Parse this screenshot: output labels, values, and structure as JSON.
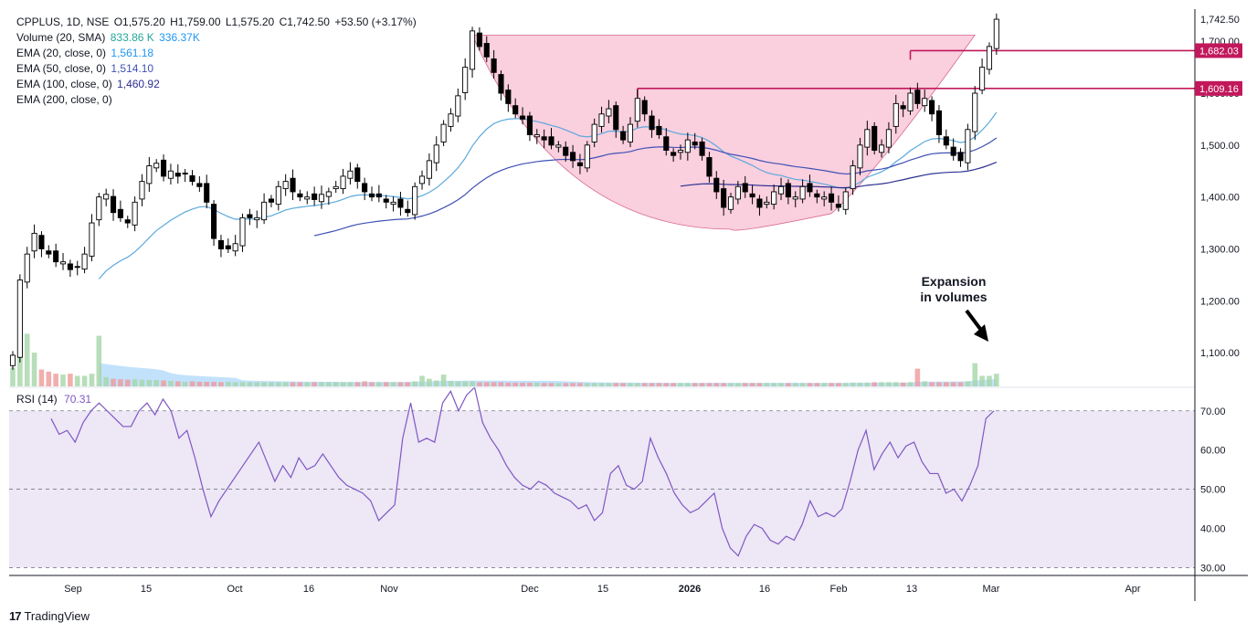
{
  "legend": {
    "symbol": "CPPLUS, 1D, NSE",
    "open": "O1,575.20",
    "high": "H1,759.00",
    "low": "L1,575.20",
    "close": "C1,742.50",
    "change": "+53.50 (+3.17%)",
    "volume_label": "Volume (20, SMA)",
    "volume_value": "833.86 K",
    "volume_sma": "336.37K",
    "ema20_label": "EMA (20, close, 0)",
    "ema20_value": "1,561.18",
    "ema50_label": "EMA (50, close, 0)",
    "ema50_value": "1,514.10",
    "ema100_label": "EMA (100, close, 0)",
    "ema100_value": "1,460.92",
    "ema200_label": "EMA (200, close, 0)"
  },
  "rsi_legend": {
    "label": "RSI (14)",
    "value": "70.31"
  },
  "annotation": {
    "line1": "Expansion",
    "line2": "in volumes"
  },
  "brand": {
    "logo": "17",
    "name": "TradingView"
  },
  "colors": {
    "up": "#ffffff",
    "down": "#000000",
    "ema20": "#5aa9dd",
    "ema50": "#3f51b5",
    "ema100": "#2b2f8f",
    "cup_fill": "#f8bbd0",
    "level_line": "#c2185b",
    "rsi_line": "#7e57c2",
    "rsi_bg": "#ede7f6",
    "vol_up": "#a5d6a7",
    "vol_down": "#ef9a9a",
    "vol_sma": "#90caf9"
  },
  "chart_data": [
    {
      "type": "candlestick",
      "title": "CPPLUS, 1D, NSE",
      "y_ticks": [
        "1,100.00",
        "1,200.00",
        "1,300.00",
        "1,400.00",
        "1,500.00",
        "1,600.00",
        "1,700.00"
      ],
      "y_tick_values": [
        1100,
        1200,
        1300,
        1400,
        1500,
        1600,
        1700
      ],
      "ylim": [
        1035,
        1762
      ],
      "x_ticks": [
        "Sep",
        "15",
        "Oct",
        "16",
        "Nov",
        "Dec",
        "15",
        "2026",
        "16",
        "Feb",
        "13",
        "Mar",
        "Apr"
      ],
      "x_tick_bold": [
        "2026"
      ],
      "price_labels": [
        {
          "text": "1,742.50",
          "value": 1742.5,
          "tag": false
        },
        {
          "text": "1,682.03",
          "value": 1682.03,
          "tag": true
        },
        {
          "text": "1,609.16",
          "value": 1609.16,
          "tag": true
        }
      ],
      "levels": [
        {
          "value": 1682.03,
          "from_index": 125
        },
        {
          "value": 1609.16,
          "from_index": 87
        }
      ],
      "cup": {
        "left_index": 64,
        "right_index": 134,
        "rim": 1712,
        "bottom": 1338
      },
      "closes": [
        1095,
        1240,
        1290,
        1330,
        1300,
        1290,
        1275,
        1275,
        1260,
        1265,
        1290,
        1350,
        1400,
        1405,
        1370,
        1360,
        1350,
        1390,
        1430,
        1460,
        1465,
        1440,
        1450,
        1440,
        1445,
        1430,
        1420,
        1390,
        1320,
        1300,
        1300,
        1310,
        1360,
        1360,
        1360,
        1390,
        1390,
        1420,
        1430,
        1410,
        1400,
        1400,
        1395,
        1405,
        1410,
        1420,
        1440,
        1450,
        1430,
        1410,
        1400,
        1400,
        1390,
        1390,
        1380,
        1370,
        1420,
        1440,
        1470,
        1500,
        1540,
        1560,
        1595,
        1650,
        1720,
        1690,
        1670,
        1640,
        1600,
        1580,
        1560,
        1550,
        1520,
        1520,
        1510,
        1500,
        1500,
        1480,
        1470,
        1460,
        1500,
        1540,
        1560,
        1570,
        1530,
        1510,
        1540,
        1590,
        1560,
        1530,
        1520,
        1490,
        1480,
        1490,
        1510,
        1500,
        1480,
        1440,
        1410,
        1380,
        1400,
        1420,
        1410,
        1400,
        1380,
        1390,
        1410,
        1420,
        1400,
        1400,
        1420,
        1410,
        1400,
        1400,
        1390,
        1380,
        1410,
        1460,
        1500,
        1530,
        1490,
        1500,
        1530,
        1580,
        1570,
        1600,
        1580,
        1590,
        1560,
        1520,
        1500,
        1480,
        1470,
        1530,
        1600,
        1650,
        1690,
        1742.5
      ],
      "volumes": [
        45,
        70,
        125,
        80,
        40,
        35,
        30,
        28,
        30,
        25,
        25,
        30,
        120,
        22,
        18,
        17,
        16,
        17,
        16,
        15,
        15,
        14,
        13,
        12,
        11,
        12,
        11,
        11,
        11,
        10,
        11,
        10,
        10,
        10,
        10,
        10,
        10,
        10,
        10,
        10,
        10,
        10,
        10,
        10,
        10,
        10,
        10,
        10,
        10,
        12,
        10,
        10,
        10,
        10,
        10,
        10,
        12,
        25,
        18,
        14,
        28,
        13,
        12,
        12,
        12,
        10,
        10,
        10,
        10,
        9,
        9,
        9,
        9,
        9,
        8,
        8,
        8,
        8,
        8,
        8,
        8,
        8,
        8,
        8,
        8,
        8,
        8,
        8,
        8,
        8,
        8,
        8,
        8,
        8,
        8,
        8,
        8,
        8,
        8,
        8,
        8,
        8,
        8,
        8,
        8,
        8,
        8,
        8,
        8,
        8,
        8,
        8,
        8,
        8,
        8,
        8,
        8,
        9,
        9,
        9,
        10,
        10,
        10,
        10,
        9,
        10,
        42,
        12,
        10,
        10,
        10,
        10,
        10,
        12,
        55,
        25,
        25,
        30
      ]
    },
    {
      "type": "line",
      "title": "RSI (14)",
      "y_ticks": [
        "30.00",
        "40.00",
        "50.00",
        "60.00",
        "70.00"
      ],
      "y_tick_values": [
        30,
        40,
        50,
        60,
        70
      ],
      "ylim": [
        28,
        76
      ],
      "band": [
        30,
        70
      ],
      "values": [
        68,
        64,
        65,
        62,
        67,
        70,
        72,
        70,
        68,
        66,
        66,
        70,
        72,
        69,
        73,
        70,
        63,
        65,
        58,
        50,
        43,
        47,
        50,
        53,
        56,
        59,
        62,
        57,
        52,
        56,
        53,
        58,
        55,
        56,
        59,
        56,
        53,
        51,
        50,
        49,
        47,
        42,
        44,
        46,
        63,
        72,
        62,
        63,
        62,
        72,
        75,
        70,
        74,
        76,
        67,
        63,
        60,
        56,
        53,
        51,
        50,
        52,
        51,
        49,
        48,
        47,
        45,
        46,
        42,
        44,
        54,
        56,
        51,
        50,
        52,
        63,
        58,
        54,
        49,
        46,
        44,
        45,
        47,
        49,
        40,
        35,
        33,
        38,
        41,
        40,
        37,
        36,
        38,
        37,
        41,
        47,
        43,
        44,
        43,
        45,
        52,
        60,
        65,
        55,
        59,
        62,
        58,
        61,
        62,
        57,
        54,
        54,
        49,
        50,
        47,
        51,
        56,
        68,
        70
      ],
      "legend_value": "70.31"
    }
  ]
}
